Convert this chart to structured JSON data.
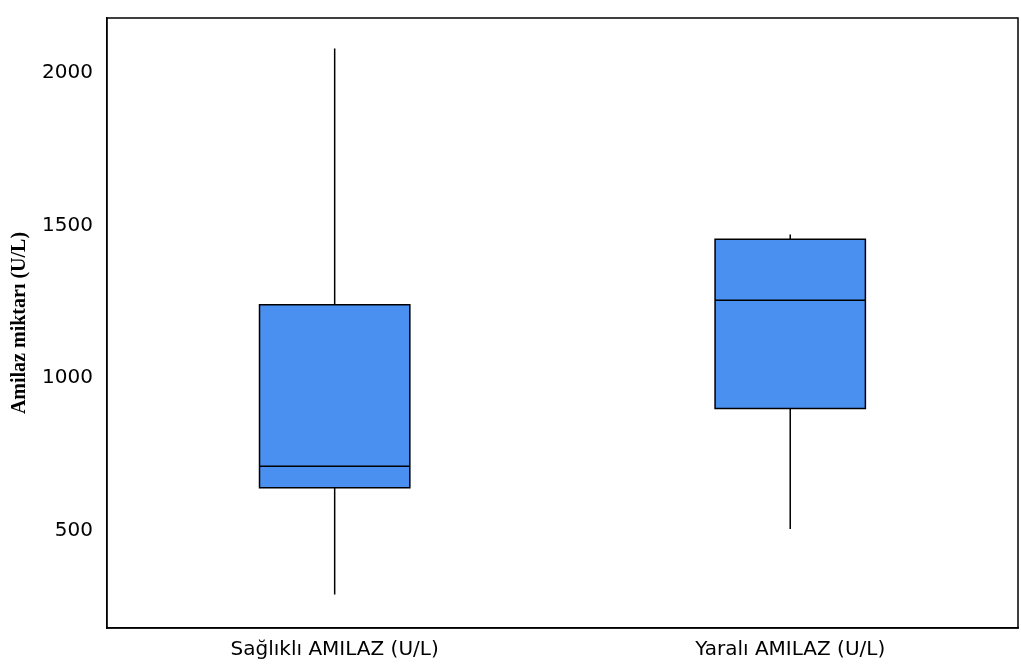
{
  "chart_data": {
    "type": "box",
    "ylabel": "Amilaz miktarı (U/L)",
    "categories": [
      "Sağlıklı AMILAZ (U/L)",
      "Yaralı AMILAZ (U/L)"
    ],
    "boxes": [
      {
        "low": 290,
        "q1": 640,
        "median": 710,
        "q3": 1240,
        "high": 2080
      },
      {
        "low": 505,
        "q1": 900,
        "median": 1255,
        "q3": 1455,
        "high": 1470
      }
    ],
    "color": "#4a90f0",
    "ylim": [
      180,
      2180
    ],
    "yticks": [
      500,
      1000,
      1500,
      2000
    ]
  }
}
